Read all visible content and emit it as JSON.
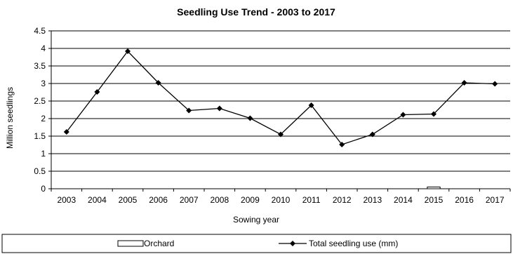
{
  "chart_data": {
    "type": "line",
    "title": "Seedling Use Trend - 2003 to 2017",
    "xlabel": "Sowing year",
    "ylabel": "Million seedlings",
    "ylim": [
      0,
      4.5
    ],
    "yticks": [
      "0",
      "0.5",
      "1",
      "1.5",
      "2",
      "2.5",
      "3",
      "3.5",
      "4",
      "4.5"
    ],
    "grid": true,
    "legend_position": "bottom",
    "categories": [
      "2003",
      "2004",
      "2005",
      "2006",
      "2007",
      "2008",
      "2009",
      "2010",
      "2011",
      "2012",
      "2013",
      "2014",
      "2015",
      "2016",
      "2017"
    ],
    "series": [
      {
        "name": "Orchard",
        "kind": "bar",
        "color": "#ffffff",
        "values": [
          0,
          0,
          0,
          0,
          0,
          0,
          0,
          0,
          0,
          0,
          0,
          0,
          0.05,
          0,
          0
        ]
      },
      {
        "name": "Total seedling use (mm)",
        "kind": "line",
        "marker": "diamond",
        "color": "#000000",
        "values": [
          1.62,
          2.76,
          3.92,
          3.02,
          2.23,
          2.29,
          2.01,
          1.55,
          2.38,
          1.26,
          1.55,
          2.11,
          2.13,
          3.02,
          2.99
        ]
      }
    ]
  }
}
